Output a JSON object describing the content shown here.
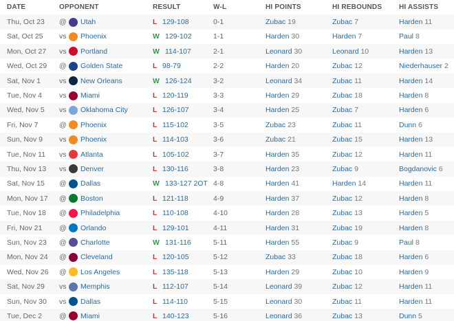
{
  "headers": {
    "date": "DATE",
    "opponent": "OPPONENT",
    "result": "RESULT",
    "wl": "W-L",
    "hi_points": "HI POINTS",
    "hi_rebounds": "HI REBOUNDS",
    "hi_assists": "HI ASSISTS"
  },
  "colors": {
    "link": "#2b6a9e",
    "loss": "#c0392b",
    "win": "#2e9a48",
    "stripe": "#f7f7f7"
  },
  "games": [
    {
      "date": "Thu, Oct 23",
      "ha": "@",
      "team": "Utah",
      "logo": "utah-jazz-logo",
      "color": "#4b3a8c",
      "res": "L",
      "score": "129-108",
      "wl": "0-1",
      "pts": [
        "Zubac",
        "19"
      ],
      "reb": [
        "Zubac",
        "7"
      ],
      "ast": [
        "Harden",
        "11"
      ]
    },
    {
      "date": "Sat, Oct 25",
      "ha": "vs",
      "team": "Phoenix",
      "logo": "phoenix-suns-logo",
      "color": "#f08a24",
      "res": "W",
      "score": "129-102",
      "wl": "1-1",
      "pts": [
        "Harden",
        "30"
      ],
      "reb": [
        "Harden",
        "7"
      ],
      "ast": [
        "Paul",
        "8"
      ]
    },
    {
      "date": "Mon, Oct 27",
      "ha": "vs",
      "team": "Portland",
      "logo": "portland-trail-blazers-logo",
      "color": "#c8102e",
      "res": "W",
      "score": "114-107",
      "wl": "2-1",
      "pts": [
        "Leonard",
        "30"
      ],
      "reb": [
        "Leonard",
        "10"
      ],
      "ast": [
        "Harden",
        "13"
      ]
    },
    {
      "date": "Wed, Oct 29",
      "ha": "@",
      "team": "Golden State",
      "logo": "golden-state-warriors-logo",
      "color": "#1d428a",
      "res": "L",
      "score": "98-79",
      "wl": "2-2",
      "pts": [
        "Harden",
        "20"
      ],
      "reb": [
        "Zubac",
        "12"
      ],
      "ast": [
        "Niederhauser",
        "2"
      ]
    },
    {
      "date": "Sat, Nov 1",
      "ha": "vs",
      "team": "New Orleans",
      "logo": "new-orleans-pelicans-logo",
      "color": "#0c2340",
      "res": "W",
      "score": "126-124",
      "wl": "3-2",
      "pts": [
        "Leonard",
        "34"
      ],
      "reb": [
        "Zubac",
        "11"
      ],
      "ast": [
        "Harden",
        "14"
      ]
    },
    {
      "date": "Tue, Nov 4",
      "ha": "vs",
      "team": "Miami",
      "logo": "miami-heat-logo",
      "color": "#98002e",
      "res": "L",
      "score": "120-119",
      "wl": "3-3",
      "pts": [
        "Harden",
        "29"
      ],
      "reb": [
        "Zubac",
        "18"
      ],
      "ast": [
        "Harden",
        "8"
      ]
    },
    {
      "date": "Wed, Nov 5",
      "ha": "vs",
      "team": "Oklahoma City",
      "logo": "oklahoma-city-thunder-logo",
      "color": "#7aa7d6",
      "res": "L",
      "score": "126-107",
      "wl": "3-4",
      "pts": [
        "Harden",
        "25"
      ],
      "reb": [
        "Zubac",
        "7"
      ],
      "ast": [
        "Harden",
        "6"
      ]
    },
    {
      "date": "Fri, Nov 7",
      "ha": "@",
      "team": "Phoenix",
      "logo": "phoenix-suns-logo",
      "color": "#f08a24",
      "res": "L",
      "score": "115-102",
      "wl": "3-5",
      "pts": [
        "Zubac",
        "23"
      ],
      "reb": [
        "Zubac",
        "11"
      ],
      "ast": [
        "Dunn",
        "6"
      ]
    },
    {
      "date": "Sun, Nov 9",
      "ha": "vs",
      "team": "Phoenix",
      "logo": "phoenix-suns-logo",
      "color": "#f08a24",
      "res": "L",
      "score": "114-103",
      "wl": "3-6",
      "pts": [
        "Zubac",
        "21"
      ],
      "reb": [
        "Zubac",
        "15"
      ],
      "ast": [
        "Harden",
        "13"
      ]
    },
    {
      "date": "Tue, Nov 11",
      "ha": "vs",
      "team": "Atlanta",
      "logo": "atlanta-hawks-logo",
      "color": "#e03a3e",
      "res": "L",
      "score": "105-102",
      "wl": "3-7",
      "pts": [
        "Harden",
        "35"
      ],
      "reb": [
        "Zubac",
        "12"
      ],
      "ast": [
        "Harden",
        "11"
      ]
    },
    {
      "date": "Thu, Nov 13",
      "ha": "vs",
      "team": "Denver",
      "logo": "denver-nuggets-logo",
      "color": "#3a3a3a",
      "res": "L",
      "score": "130-116",
      "wl": "3-8",
      "pts": [
        "Harden",
        "23"
      ],
      "reb": [
        "Zubac",
        "9"
      ],
      "ast": [
        "Bogdanovic",
        "6"
      ]
    },
    {
      "date": "Sat, Nov 15",
      "ha": "@",
      "team": "Dallas",
      "logo": "dallas-mavericks-logo",
      "color": "#00538c",
      "res": "W",
      "score": "133-127 2OT",
      "wl": "4-8",
      "pts": [
        "Harden",
        "41"
      ],
      "reb": [
        "Harden",
        "14"
      ],
      "ast": [
        "Harden",
        "11"
      ]
    },
    {
      "date": "Mon, Nov 17",
      "ha": "@",
      "team": "Boston",
      "logo": "boston-celtics-logo",
      "color": "#007a33",
      "res": "L",
      "score": "121-118",
      "wl": "4-9",
      "pts": [
        "Harden",
        "37"
      ],
      "reb": [
        "Zubac",
        "12"
      ],
      "ast": [
        "Harden",
        "8"
      ]
    },
    {
      "date": "Tue, Nov 18",
      "ha": "@",
      "team": "Philadelphia",
      "logo": "philadelphia-76ers-logo",
      "color": "#ed174c",
      "res": "L",
      "score": "110-108",
      "wl": "4-10",
      "pts": [
        "Harden",
        "28"
      ],
      "reb": [
        "Zubac",
        "13"
      ],
      "ast": [
        "Harden",
        "5"
      ]
    },
    {
      "date": "Fri, Nov 21",
      "ha": "@",
      "team": "Orlando",
      "logo": "orlando-magic-logo",
      "color": "#0077c0",
      "res": "L",
      "score": "129-101",
      "wl": "4-11",
      "pts": [
        "Harden",
        "31"
      ],
      "reb": [
        "Zubac",
        "19"
      ],
      "ast": [
        "Harden",
        "8"
      ]
    },
    {
      "date": "Sun, Nov 23",
      "ha": "@",
      "team": "Charlotte",
      "logo": "charlotte-hornets-logo",
      "color": "#5a4e9a",
      "res": "W",
      "score": "131-116",
      "wl": "5-11",
      "pts": [
        "Harden",
        "55"
      ],
      "reb": [
        "Zubac",
        "9"
      ],
      "ast": [
        "Paul",
        "8"
      ]
    },
    {
      "date": "Mon, Nov 24",
      "ha": "@",
      "team": "Cleveland",
      "logo": "cleveland-cavaliers-logo",
      "color": "#860038",
      "res": "L",
      "score": "120-105",
      "wl": "5-12",
      "pts": [
        "Zubac",
        "33"
      ],
      "reb": [
        "Zubac",
        "18"
      ],
      "ast": [
        "Harden",
        "6"
      ]
    },
    {
      "date": "Wed, Nov 26",
      "ha": "@",
      "team": "Los Angeles",
      "logo": "los-angeles-lakers-logo",
      "color": "#fdb927",
      "res": "L",
      "score": "135-118",
      "wl": "5-13",
      "pts": [
        "Harden",
        "29"
      ],
      "reb": [
        "Zubac",
        "10"
      ],
      "ast": [
        "Harden",
        "9"
      ]
    },
    {
      "date": "Sat, Nov 29",
      "ha": "vs",
      "team": "Memphis",
      "logo": "memphis-grizzlies-logo",
      "color": "#5d76a9",
      "res": "L",
      "score": "112-107",
      "wl": "5-14",
      "pts": [
        "Leonard",
        "39"
      ],
      "reb": [
        "Zubac",
        "12"
      ],
      "ast": [
        "Harden",
        "11"
      ]
    },
    {
      "date": "Sun, Nov 30",
      "ha": "vs",
      "team": "Dallas",
      "logo": "dallas-mavericks-logo",
      "color": "#00538c",
      "res": "L",
      "score": "114-110",
      "wl": "5-15",
      "pts": [
        "Leonard",
        "30"
      ],
      "reb": [
        "Zubac",
        "11"
      ],
      "ast": [
        "Harden",
        "11"
      ]
    },
    {
      "date": "Tue, Dec 2",
      "ha": "@",
      "team": "Miami",
      "logo": "miami-heat-logo",
      "color": "#98002e",
      "res": "L",
      "score": "140-123",
      "wl": "5-16",
      "pts": [
        "Leonard",
        "36"
      ],
      "reb": [
        "Zubac",
        "13"
      ],
      "ast": [
        "Dunn",
        "5"
      ]
    }
  ]
}
